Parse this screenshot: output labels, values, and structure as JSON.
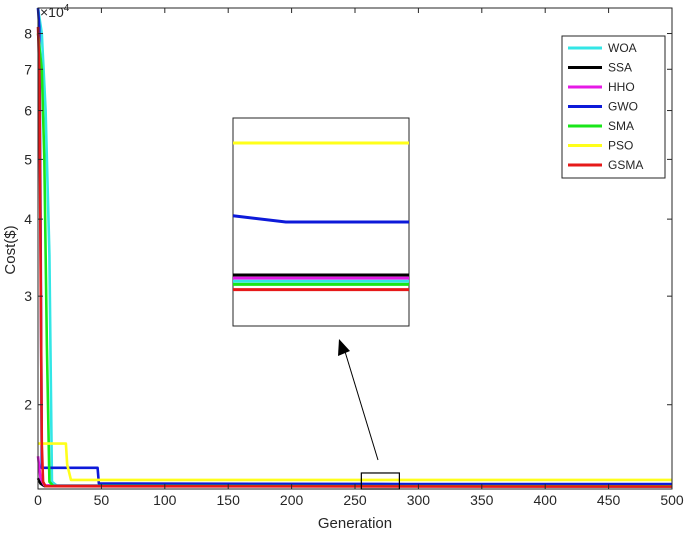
{
  "chart_data": {
    "type": "line",
    "xlabel": "Generation",
    "ylabel": "Cost($)",
    "y_exponent_label": "×10^4",
    "y_scale": "log",
    "xlim": [
      0,
      500
    ],
    "ylim": [
      14600,
      88000
    ],
    "x_ticks": [
      0,
      50,
      100,
      150,
      200,
      250,
      300,
      350,
      400,
      450,
      500
    ],
    "y_ticks": [
      {
        "value": 20000,
        "label": "2"
      },
      {
        "value": 30000,
        "label": "3"
      },
      {
        "value": 40000,
        "label": "4"
      },
      {
        "value": 50000,
        "label": "5"
      },
      {
        "value": 60000,
        "label": "6"
      },
      {
        "value": 70000,
        "label": "7"
      },
      {
        "value": 80000,
        "label": "8"
      }
    ],
    "legend_position": "top-right",
    "series": [
      {
        "name": "WOA",
        "color": "#33e6e6",
        "points": [
          [
            0,
            88000
          ],
          [
            3,
            80000
          ],
          [
            6,
            60000
          ],
          [
            9,
            35000
          ],
          [
            11,
            15000
          ],
          [
            15,
            14780
          ],
          [
            500,
            14740
          ]
        ]
      },
      {
        "name": "SSA",
        "color": "#000000",
        "points": [
          [
            0,
            15200
          ],
          [
            2,
            14900
          ],
          [
            5,
            14760
          ],
          [
            500,
            14755
          ]
        ]
      },
      {
        "name": "HHO",
        "color": "#e619e6",
        "points": [
          [
            0,
            16500
          ],
          [
            2,
            15200
          ],
          [
            5,
            14800
          ],
          [
            500,
            14750
          ]
        ]
      },
      {
        "name": "GWO",
        "color": "#0d1ad9",
        "points": [
          [
            0,
            88000
          ],
          [
            1,
            82000
          ],
          [
            2,
            40000
          ],
          [
            3,
            15800
          ],
          [
            47,
            15800
          ],
          [
            48,
            14900
          ],
          [
            270,
            14880
          ],
          [
            290,
            14870
          ],
          [
            500,
            14870
          ]
        ]
      },
      {
        "name": "SMA",
        "color": "#19e619",
        "points": [
          [
            0,
            80000
          ],
          [
            3,
            70000
          ],
          [
            5,
            50000
          ],
          [
            7,
            25000
          ],
          [
            9,
            15000
          ],
          [
            12,
            14770
          ],
          [
            500,
            14745
          ]
        ]
      },
      {
        "name": "PSO",
        "color": "#ffff1a",
        "points": [
          [
            0,
            17300
          ],
          [
            22,
            17300
          ],
          [
            23,
            16000
          ],
          [
            26,
            15100
          ],
          [
            500,
            15100
          ]
        ]
      },
      {
        "name": "GSMA",
        "color": "#e61919",
        "points": [
          [
            0,
            82000
          ],
          [
            1,
            70000
          ],
          [
            2,
            35000
          ],
          [
            3,
            17300
          ],
          [
            4,
            15000
          ],
          [
            6,
            14750
          ],
          [
            500,
            14730
          ]
        ]
      }
    ],
    "zoom_box_x": [
      255,
      285
    ],
    "zoom_box_y": [
      14600,
      15500
    ],
    "inset": {
      "series": [
        {
          "name": "PSO",
          "color": "#ffff1a",
          "points": [
            [
              0,
              0.12
            ],
            [
              1,
              0.12
            ]
          ]
        },
        {
          "name": "GWO",
          "color": "#0d1ad9",
          "points": [
            [
              0,
              0.47
            ],
            [
              0.3,
              0.5
            ],
            [
              1,
              0.5
            ]
          ]
        },
        {
          "name": "SSA",
          "color": "#000000",
          "points": [
            [
              0,
              0.755
            ],
            [
              1,
              0.755
            ]
          ]
        },
        {
          "name": "HHO",
          "color": "#e619e6",
          "points": [
            [
              0,
              0.77
            ],
            [
              1,
              0.77
            ]
          ]
        },
        {
          "name": "WOA",
          "color": "#33e6e6",
          "points": [
            [
              0,
              0.785
            ],
            [
              1,
              0.785
            ]
          ]
        },
        {
          "name": "SMA",
          "color": "#19e619",
          "points": [
            [
              0,
              0.8
            ],
            [
              1,
              0.8
            ]
          ]
        },
        {
          "name": "GSMA",
          "color": "#e61919",
          "points": [
            [
              0,
              0.825
            ],
            [
              1,
              0.825
            ]
          ]
        }
      ]
    }
  }
}
